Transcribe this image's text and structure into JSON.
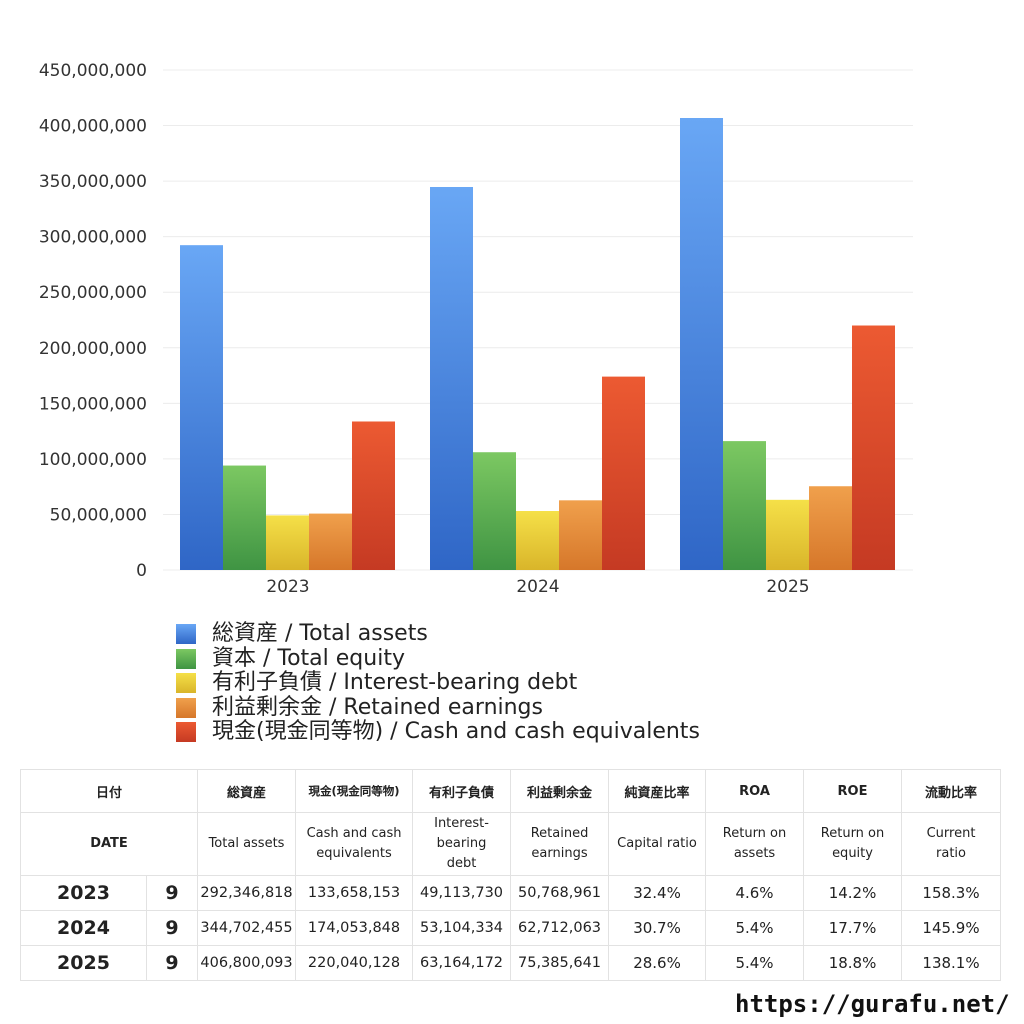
{
  "chart_data": {
    "type": "bar",
    "categories": [
      "2023",
      "2024",
      "2025"
    ],
    "ylim": [
      0,
      450000000
    ],
    "yticks": [
      0,
      50000000,
      100000000,
      150000000,
      200000000,
      250000000,
      300000000,
      350000000,
      400000000,
      450000000
    ],
    "ytick_labels": [
      "0",
      "50,000,000",
      "100,000,000",
      "150,000,000",
      "200,000,000",
      "250,000,000",
      "300,000,000",
      "350,000,000",
      "400,000,000",
      "450,000,000"
    ],
    "grid": true,
    "legend_position": "bottom",
    "series": [
      {
        "name": "総資産 / Total assets",
        "values": [
          292346818,
          344702455,
          406800093
        ],
        "color_top": "#69a7f5",
        "color_bottom": "#2f66c6"
      },
      {
        "name": "資本 / Total equity",
        "values": [
          94000000,
          106000000,
          116000000
        ],
        "color_top": "#7cc862",
        "color_bottom": "#3f9443"
      },
      {
        "name": "有利子負債 / Interest-bearing debt",
        "values": [
          49113730,
          53104334,
          63164172
        ],
        "color_top": "#f5e048",
        "color_bottom": "#d9b52a"
      },
      {
        "name": "利益剰余金 / Retained earnings",
        "values": [
          50768961,
          62712063,
          75385641
        ],
        "color_top": "#f0a04c",
        "color_bottom": "#d6772a"
      },
      {
        "name": "現金(現金同等物)  /  Cash and cash equivalents",
        "values": [
          133658153,
          174053848,
          220040128
        ],
        "color_top": "#ec5a32",
        "color_bottom": "#c53a23"
      }
    ]
  },
  "table": {
    "header_jp": [
      "日付",
      "総資産",
      "現金(現金同等物)",
      "有利子負債",
      "利益剰余金",
      "純資産比率",
      "ROA",
      "ROE",
      "流動比率"
    ],
    "header_en": [
      "DATE",
      "Total assets",
      "Cash and cash equivalents",
      "Interest-bearing debt",
      "Retained earnings",
      "Capital ratio",
      "Return on assets",
      "Return on equity",
      "Current ratio"
    ],
    "rows": [
      {
        "year": "2023",
        "month": "9",
        "total_assets": "292,346,818",
        "cash": "133,658,153",
        "debt": "49,113,730",
        "retained": "50,768,961",
        "capital_ratio": "32.4%",
        "roa": "4.6%",
        "roe": "14.2%",
        "current_ratio": "158.3%"
      },
      {
        "year": "2024",
        "month": "9",
        "total_assets": "344,702,455",
        "cash": "174,053,848",
        "debt": "53,104,334",
        "retained": "62,712,063",
        "capital_ratio": "30.7%",
        "roa": "5.4%",
        "roe": "17.7%",
        "current_ratio": "145.9%"
      },
      {
        "year": "2025",
        "month": "9",
        "total_assets": "406,800,093",
        "cash": "220,040,128",
        "debt": "63,164,172",
        "retained": "75,385,641",
        "capital_ratio": "28.6%",
        "roa": "5.4%",
        "roe": "18.8%",
        "current_ratio": "138.1%"
      }
    ]
  },
  "footer": {
    "url": "https://gurafu.net/"
  }
}
